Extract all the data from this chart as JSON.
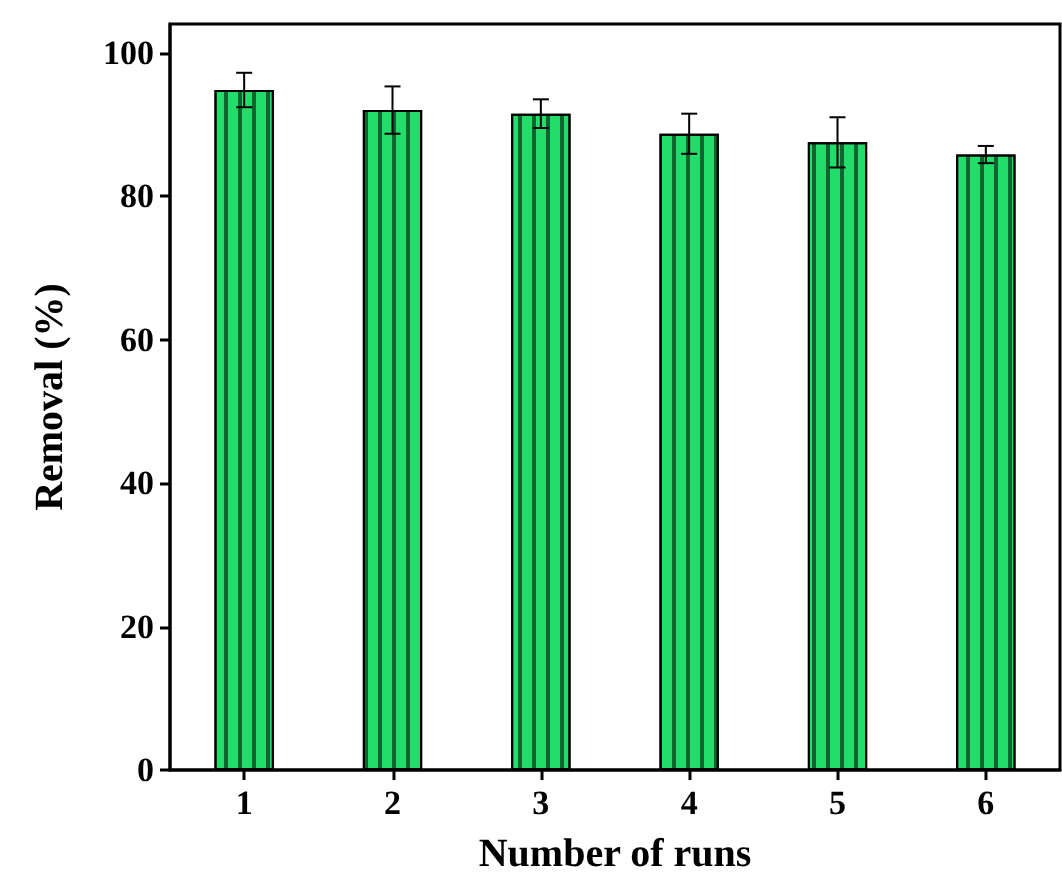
{
  "chart_data": {
    "type": "bar",
    "xlabel": "Number of runs",
    "ylabel": "Removal (%)",
    "categories": [
      "1",
      "2",
      "3",
      "4",
      "5",
      "6"
    ],
    "values": [
      94.8,
      92,
      91.5,
      88.7,
      87.5,
      85.8
    ],
    "errors": [
      2.4,
      3.3,
      2,
      2.8,
      3.5,
      1.2
    ],
    "color": "#22dd6a",
    "ylim": [
      0,
      104
    ],
    "yticks": [
      0,
      20,
      40,
      60,
      80,
      100
    ],
    "grid": false
  }
}
